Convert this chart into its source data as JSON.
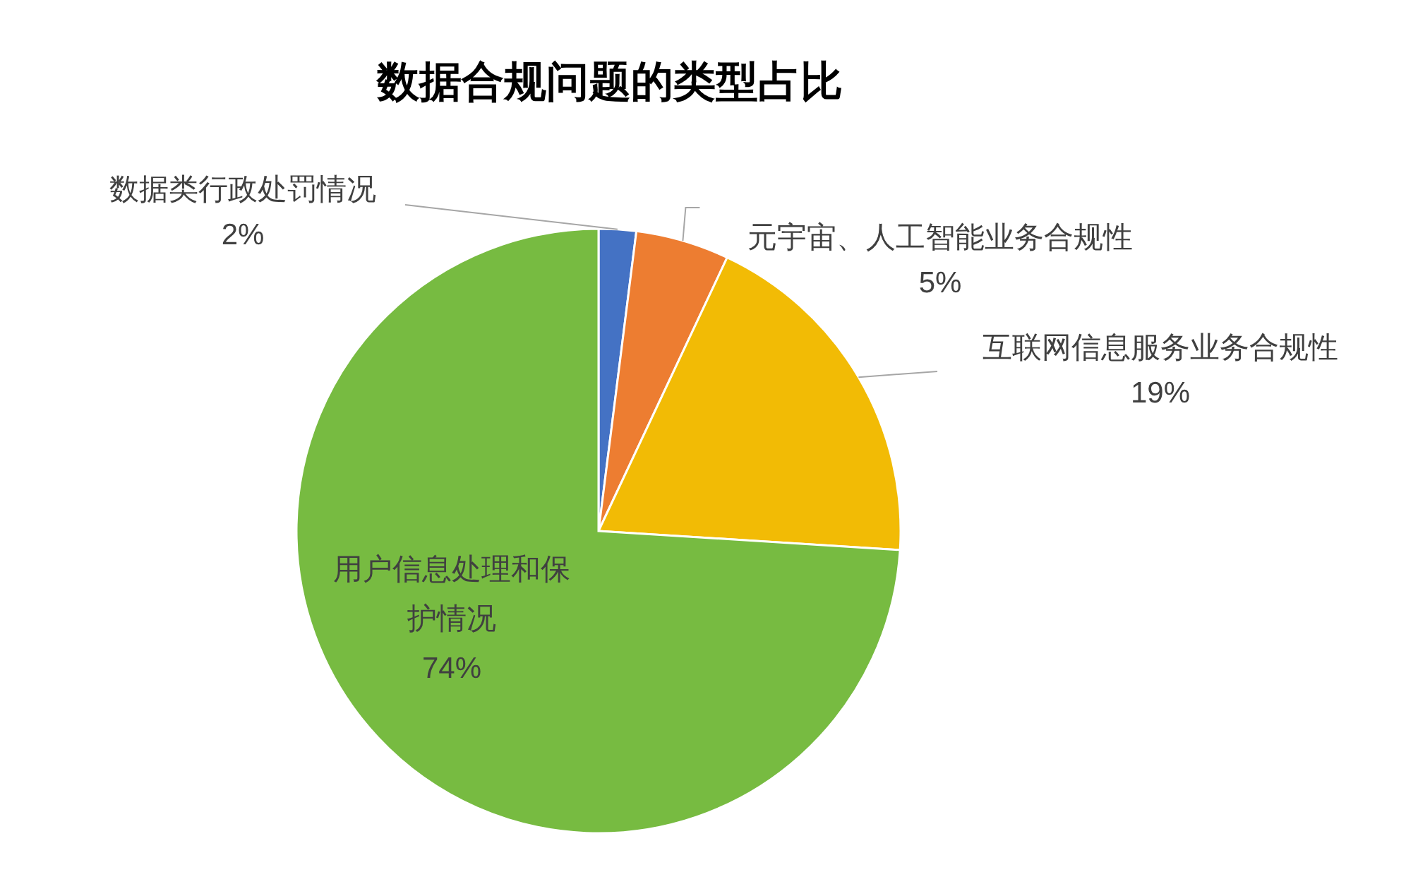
{
  "chart_data": {
    "type": "pie",
    "title": "数据合规问题的类型占比",
    "categories": [
      "数据类行政处罚情况",
      "元宇宙、人工智能业务合规性",
      "互联网信息服务业务合规性",
      "用户信息处理和保护情况"
    ],
    "values": [
      2,
      5,
      19,
      74
    ],
    "colors": [
      "#4472c4",
      "#ed7d31",
      "#f2bb05",
      "#77bb41"
    ],
    "value_labels": [
      "2%",
      "5%",
      "19%",
      "74%"
    ]
  }
}
